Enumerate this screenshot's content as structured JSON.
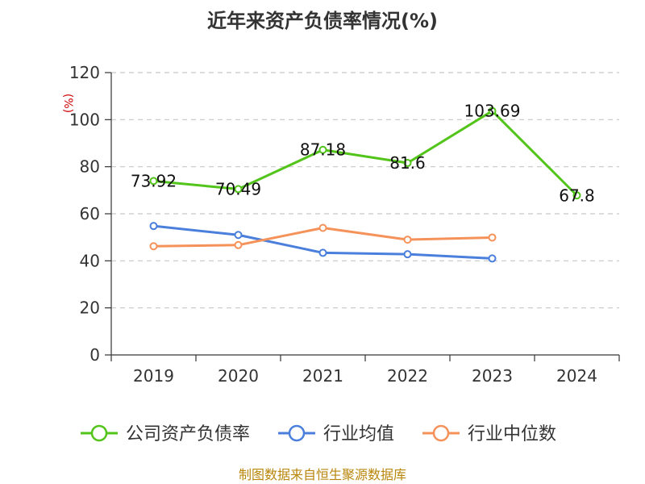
{
  "chart_data": {
    "type": "line",
    "title": "近年来资产负债率情况(%)",
    "ylabel": "(%)",
    "xlabel": "",
    "categories": [
      "2019",
      "2020",
      "2021",
      "2022",
      "2023",
      "2024"
    ],
    "ylim": [
      0,
      120
    ],
    "yticks": [
      "0",
      "20",
      "40",
      "60",
      "80",
      "100",
      "120"
    ],
    "grid": true,
    "legend_position": "bottom",
    "series": [
      {
        "name": "公司资产负债率",
        "color": "#52c41a",
        "values": [
          73.92,
          70.49,
          87.18,
          81.6,
          103.69,
          67.8
        ],
        "labels": [
          "73.92",
          "70.49",
          "87.18",
          "81.6",
          "103.69",
          "67.8"
        ]
      },
      {
        "name": "行业均值",
        "color": "#4a7fdc",
        "values": [
          54.8,
          51.0,
          43.4,
          42.8,
          41.0,
          null
        ]
      },
      {
        "name": "行业中位数",
        "color": "#f5925a",
        "values": [
          46.2,
          46.7,
          54.0,
          49.0,
          49.9,
          null
        ]
      }
    ]
  },
  "footer": {
    "source": "制图数据来自恒生聚源数据库"
  }
}
